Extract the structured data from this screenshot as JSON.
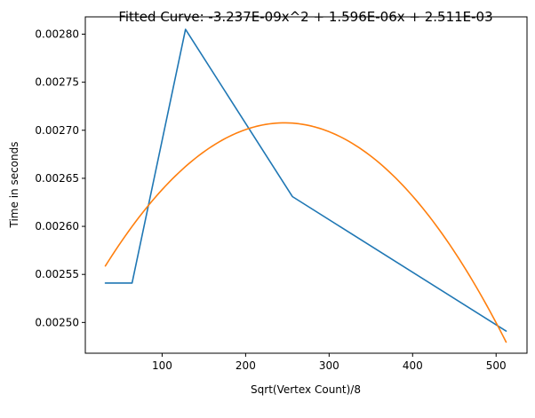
{
  "chart_data": {
    "type": "line",
    "title": "Fitted Curve: -3.237E-09x^2 + 1.596E-06x + 2.511E-03",
    "xlabel": "Sqrt(Vertex Count)/8",
    "ylabel": "Time in seconds",
    "xlim": [
      8,
      537
    ],
    "ylim": [
      0.002468,
      0.002818
    ],
    "x_ticks": [
      100,
      200,
      300,
      400,
      500
    ],
    "x_tick_labels": [
      "100",
      "200",
      "300",
      "400",
      "500"
    ],
    "y_ticks": [
      0.0025,
      0.00255,
      0.0026,
      0.00265,
      0.0027,
      0.00275,
      0.0028
    ],
    "y_tick_labels": [
      "0.00250",
      "0.00255",
      "0.00260",
      "0.00265",
      "0.00270",
      "0.00275",
      "0.00280"
    ],
    "grid": false,
    "series": [
      {
        "color": "#1f77b4",
        "x": [
          32,
          64,
          128,
          256,
          512
        ],
        "y": [
          0.002541,
          0.002541,
          0.002805,
          0.002631,
          0.002491
        ]
      },
      {
        "color": "#ff7f0e",
        "fit": {
          "a": -3.237e-09,
          "b": 1.596e-06,
          "c": 0.002511,
          "x_range": [
            32,
            512
          ]
        }
      }
    ]
  }
}
